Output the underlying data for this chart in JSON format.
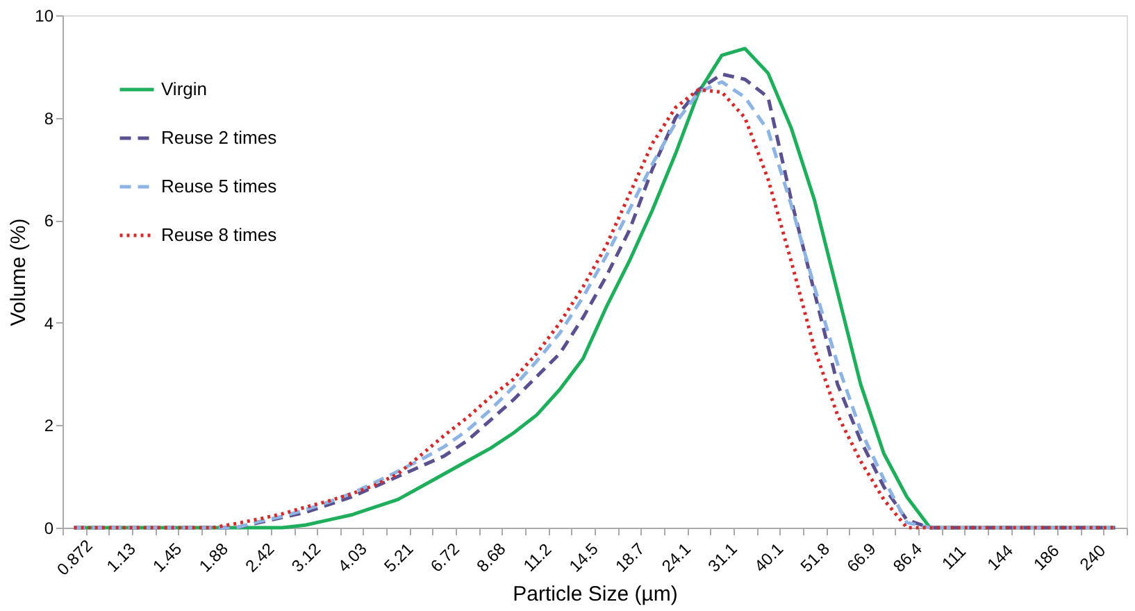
{
  "chart_data": {
    "type": "line",
    "xlabel": "Particle Size (µm)",
    "ylabel": "Volume (%)",
    "categories": [
      "0.872",
      null,
      "1.13",
      null,
      "1.45",
      null,
      "1.88",
      null,
      "2.42",
      null,
      "3.12",
      null,
      "4.03",
      null,
      "5.21",
      null,
      "6.72",
      null,
      "8.68",
      null,
      "11.2",
      null,
      "14.5",
      null,
      "18.7",
      null,
      "24.1",
      null,
      "31.1",
      null,
      "40.1",
      null,
      "51.8",
      null,
      "66.9",
      null,
      "86.4",
      null,
      "111",
      null,
      "144",
      null,
      "186",
      null,
      "240",
      null
    ],
    "series": [
      {
        "name": "Virgin",
        "color": "#1fae5b",
        "line_style": "solid",
        "values": [
          0,
          0,
          0,
          0,
          0,
          0,
          0,
          0,
          0,
          0,
          0.05,
          0.15,
          0.25,
          0.4,
          0.55,
          0.8,
          1.05,
          1.3,
          1.55,
          1.85,
          2.2,
          2.7,
          3.3,
          4.3,
          5.2,
          6.2,
          7.3,
          8.5,
          9.22,
          9.35,
          8.87,
          7.8,
          6.4,
          4.6,
          2.8,
          1.45,
          0.6,
          0,
          0,
          0,
          0,
          0,
          0,
          0,
          0,
          0
        ]
      },
      {
        "name": "Reuse 2 times",
        "color": "#5b5190",
        "line_style": "dashed",
        "values": [
          0,
          0,
          0,
          0,
          0,
          0,
          0,
          0,
          0.1,
          0.2,
          0.3,
          0.45,
          0.6,
          0.8,
          1.0,
          1.2,
          1.4,
          1.7,
          2.1,
          2.5,
          2.95,
          3.4,
          4.1,
          4.9,
          5.8,
          7.0,
          8.0,
          8.55,
          8.85,
          8.75,
          8.4,
          6.4,
          4.6,
          2.8,
          1.7,
          0.8,
          0.15,
          0,
          0,
          0,
          0,
          0,
          0,
          0,
          0,
          0
        ]
      },
      {
        "name": "Reuse 5 times",
        "color": "#8eb4e3",
        "line_style": "dashed",
        "values": [
          0,
          0,
          0,
          0,
          0,
          0,
          0,
          0,
          0.12,
          0.22,
          0.35,
          0.5,
          0.67,
          0.88,
          1.1,
          1.33,
          1.58,
          1.9,
          2.3,
          2.75,
          3.25,
          3.8,
          4.5,
          5.3,
          6.2,
          7.1,
          7.9,
          8.5,
          8.7,
          8.4,
          7.75,
          6.3,
          4.7,
          3.2,
          1.9,
          0.95,
          0.1,
          0,
          0,
          0,
          0,
          0,
          0,
          0,
          0,
          0
        ]
      },
      {
        "name": "Reuse 8 times",
        "color": "#d42a2a",
        "line_style": "dotted",
        "values": [
          0,
          0,
          0,
          0,
          0,
          0,
          0,
          0.08,
          0.17,
          0.27,
          0.4,
          0.52,
          0.66,
          0.83,
          1.05,
          1.42,
          1.8,
          2.15,
          2.55,
          2.9,
          3.4,
          4.0,
          4.7,
          5.5,
          6.5,
          7.5,
          8.2,
          8.55,
          8.5,
          8.0,
          6.8,
          5.2,
          3.5,
          2.2,
          1.3,
          0.55,
          0,
          0,
          0,
          0,
          0,
          0,
          0,
          0,
          0,
          0
        ]
      }
    ],
    "ylim": [
      0,
      10
    ],
    "yticks": [
      0,
      2,
      4,
      6,
      8,
      10
    ],
    "grid": false,
    "legend": "top left"
  }
}
